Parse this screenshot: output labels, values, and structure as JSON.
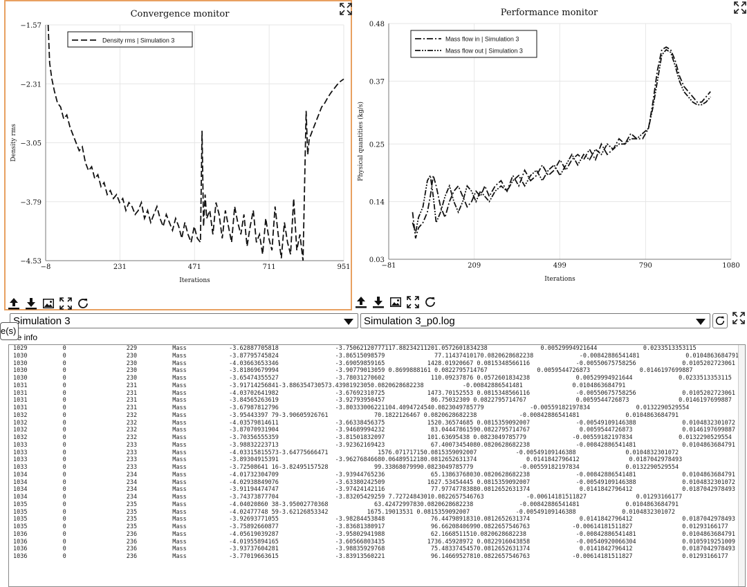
{
  "selectors": {
    "simulation_value": "Simulation 3",
    "logfile_value": "Simulation 3_p0.log"
  },
  "tooltip_fragment": "e(s)",
  "file_info_label": "File info",
  "toolbar_icons": [
    "upload-icon",
    "download-icon",
    "image-icon",
    "fullscreen-icon",
    "refresh-icon"
  ],
  "chart_data": [
    {
      "type": "line",
      "title": "Convergence monitor",
      "xlabel": "Iterations",
      "ylabel": "Density rms",
      "xlim": [
        -8,
        951
      ],
      "ylim": [
        -4.53,
        -1.57
      ],
      "xticks": [
        -8,
        231,
        471,
        711,
        951
      ],
      "yticks": [
        -1.57,
        -2.31,
        -3.05,
        -3.79,
        -4.53
      ],
      "xtick_labels": [
        "−8",
        "231",
        "471",
        "711",
        "951"
      ],
      "ytick_labels": [
        "−1.57",
        "−2.31",
        "−3.05",
        "−3.79",
        "−4.53"
      ],
      "grid": true,
      "legend_position": "top-left",
      "series": [
        {
          "name": "Density rms | Simulation 3",
          "style": "dashed",
          "x": [
            0,
            5,
            12,
            20,
            30,
            40,
            50,
            60,
            70,
            80,
            90,
            100,
            110,
            120,
            130,
            140,
            150,
            160,
            170,
            180,
            190,
            200,
            210,
            220,
            230,
            240,
            250,
            260,
            270,
            280,
            290,
            300,
            310,
            320,
            330,
            340,
            350,
            360,
            370,
            380,
            390,
            400,
            410,
            420,
            430,
            440,
            450,
            460,
            470,
            480,
            490,
            495,
            500,
            505,
            510,
            520,
            530,
            540,
            550,
            560,
            570,
            580,
            590,
            600,
            610,
            620,
            630,
            640,
            650,
            660,
            670,
            680,
            690,
            700,
            710,
            720,
            730,
            740,
            750,
            760,
            770,
            780,
            790,
            800,
            810,
            820,
            830,
            835,
            840,
            845,
            850,
            860,
            870,
            880,
            890,
            900,
            910,
            920,
            930,
            940,
            951
          ],
          "y": [
            -1.57,
            -2.05,
            -2.25,
            -2.4,
            -2.55,
            -2.6,
            -2.75,
            -2.7,
            -2.85,
            -2.95,
            -3.05,
            -3.15,
            -3.1,
            -3.3,
            -3.4,
            -3.35,
            -3.5,
            -3.45,
            -3.6,
            -3.55,
            -3.7,
            -3.65,
            -3.75,
            -3.7,
            -3.8,
            -3.75,
            -3.9,
            -3.8,
            -3.85,
            -3.95,
            -3.9,
            -3.8,
            -4.0,
            -3.9,
            -4.05,
            -3.95,
            -3.85,
            -4.0,
            -4.1,
            -3.95,
            -4.05,
            -4.15,
            -4.0,
            -4.1,
            -4.25,
            -4.05,
            -4.2,
            -4.3,
            -4.1,
            -4.25,
            -4.3,
            -2.9,
            -4.1,
            -3.7,
            -4.0,
            -3.9,
            -4.2,
            -3.8,
            -3.95,
            -4.25,
            -3.9,
            -4.1,
            -4.3,
            -3.85,
            -4.05,
            -4.2,
            -3.95,
            -4.35,
            -4.1,
            -3.9,
            -4.3,
            -4.2,
            -4.45,
            -4.0,
            -4.25,
            -4.4,
            -3.85,
            -4.2,
            -4.5,
            -4.05,
            -4.3,
            -4.45,
            -3.75,
            -4.4,
            -4.2,
            -4.53,
            -2.65,
            -3.2,
            -3.0,
            -2.95,
            -2.9,
            -2.8,
            -2.7,
            -2.6,
            -2.55,
            -2.48,
            -2.42,
            -2.37,
            -2.32,
            -2.28,
            -2.25
          ]
        }
      ]
    },
    {
      "type": "line",
      "title": "Performance monitor",
      "xlabel": "Iterations",
      "ylabel": "Physical quantities (kg/s)",
      "xlim": [
        -81,
        1080
      ],
      "ylim": [
        0.03,
        0.48
      ],
      "xticks": [
        -81,
        209,
        499,
        790,
        1080
      ],
      "yticks": [
        0.03,
        0.14,
        0.25,
        0.37,
        0.48
      ],
      "xtick_labels": [
        "−81",
        "209",
        "499",
        "790",
        "1080"
      ],
      "ytick_labels": [
        "0.03",
        "0.14",
        "0.25",
        "0.37",
        "0.48"
      ],
      "grid": true,
      "legend_position": "top-left",
      "series": [
        {
          "name": "Mass flow in | Simulation 3",
          "style": "dashdot",
          "x": [
            0,
            10,
            20,
            35,
            50,
            60,
            70,
            80,
            95,
            110,
            125,
            140,
            155,
            170,
            185,
            200,
            215,
            230,
            245,
            260,
            280,
            300,
            320,
            340,
            360,
            380,
            400,
            420,
            440,
            460,
            480,
            500,
            520,
            540,
            560,
            580,
            600,
            620,
            640,
            660,
            680,
            700,
            720,
            740,
            760,
            780,
            800,
            815,
            830,
            845,
            860,
            875,
            890,
            905,
            920,
            935,
            950,
            965,
            980,
            995,
            1010
          ],
          "y": [
            0.12,
            0.07,
            0.09,
            0.1,
            0.12,
            0.15,
            0.19,
            0.17,
            0.13,
            0.11,
            0.14,
            0.16,
            0.17,
            0.15,
            0.13,
            0.14,
            0.16,
            0.15,
            0.17,
            0.15,
            0.17,
            0.18,
            0.16,
            0.19,
            0.17,
            0.2,
            0.18,
            0.19,
            0.21,
            0.19,
            0.2,
            0.22,
            0.2,
            0.22,
            0.23,
            0.22,
            0.24,
            0.22,
            0.25,
            0.23,
            0.24,
            0.26,
            0.25,
            0.27,
            0.26,
            0.26,
            0.28,
            0.33,
            0.39,
            0.43,
            0.435,
            0.43,
            0.41,
            0.38,
            0.36,
            0.35,
            0.34,
            0.33,
            0.33,
            0.34,
            0.35
          ]
        },
        {
          "name": "Mass flow out | Simulation 3",
          "style": "dashdotdot",
          "x": [
            0,
            10,
            20,
            35,
            50,
            60,
            70,
            80,
            95,
            110,
            125,
            140,
            155,
            170,
            185,
            200,
            215,
            230,
            245,
            260,
            280,
            300,
            320,
            340,
            360,
            380,
            400,
            420,
            440,
            460,
            480,
            500,
            520,
            540,
            560,
            580,
            600,
            620,
            640,
            660,
            680,
            700,
            720,
            740,
            760,
            780,
            800,
            815,
            830,
            845,
            860,
            875,
            890,
            905,
            920,
            935,
            950,
            965,
            980,
            995,
            1010
          ],
          "y": [
            0.1,
            0.08,
            0.11,
            0.13,
            0.18,
            0.19,
            0.15,
            0.1,
            0.12,
            0.15,
            0.17,
            0.14,
            0.12,
            0.14,
            0.17,
            0.16,
            0.14,
            0.16,
            0.15,
            0.14,
            0.16,
            0.17,
            0.16,
            0.18,
            0.19,
            0.17,
            0.19,
            0.2,
            0.18,
            0.2,
            0.21,
            0.19,
            0.21,
            0.23,
            0.21,
            0.23,
            0.22,
            0.24,
            0.23,
            0.25,
            0.24,
            0.25,
            0.25,
            0.26,
            0.26,
            0.27,
            0.28,
            0.32,
            0.37,
            0.42,
            0.43,
            0.425,
            0.4,
            0.37,
            0.35,
            0.34,
            0.33,
            0.325,
            0.325,
            0.33,
            0.34
          ]
        }
      ]
    }
  ],
  "log_lines": [
    "1029          0                 229          Mass            -3.62887705818                -3.75062120777117.88234211201.0572601834238               0.00529994921644             0.0233513353115",
    "1030          0                 230          Mass            -3.87795745824                -3.86515098579              77.11437410170.0820628682238             -0.00842886541481             0.0104863684791",
    "1030          0                 230          Mass            -4.03663653346                -3.69059859165            1428.01920667 0.0815348566116             -0.00550675758256             0.0105202723061",
    "1030          0                 230          Mass            -3.81869679994                -3.90779013059 0.8699888161 0.0822795714767              0.0059544726873              0.0146197699887",
    "1030          0                 230          Mass            -3.65474355527                -3.78031270602             110.09237876 0.0572601834238             0.00529994921644             0.0233513353115",
    "1031          0                 231          Mass            -3.91714256841-3.886354730573.43981923050.0820628682238           -0.00842886541481              0.0104863684791",
    "1031          0                 231          Mass            -4.03702641982                -3.67692310725            1473.70152553 0.0815348566116             -0.00550675758256             0.0105202723061",
    "1031          0                 231          Mass            -3.84565263619                -3.92793950457             86.75032309 0.0822795714767              0.0059544726873              0.0146197699887",
    "1031          0                 231          Mass            -3.67987812796                -3.80333006221104.4094724540.0823049785779             -0.00559182197834             0.0132290529554",
    "1032          0                 232          Mass            -3.95443397 79-3.90605926761             70.1822126467 0.0820628682238            -0.00842886541481             0.0104863684791",
    "1032          0                 232          Mass            -4.03579814611                -3.66338456375            1520.36574685 0.0815359092007             -0.00549109146388             0.0104832301072",
    "1032          0                 232          Mass            -3.87070931904                -3.94689994232             83.04447861590.0822795714767              0.0059544726873              0.0146197699887",
    "1032          0                 232          Mass            -3.70356555359                -3.81501832097            101.63695438 0.0823049785779             -0.00559182197834             0.0132290529554",
    "1033          0                 233          Mass            -3.98832223713                -3.92362169423             67.40073454080.0820628682238             -0.00842886541481             0.0104863684791",
    "1033          0                 233          Mass            -4.03315815573-3.64775666471              1576.071717150.0815359092007           -0.00549109146388              0.0104832301072",
    "1033          0                 233          Mass            -3.89304915391                -3.96276846680.06489512180.0812652631374              0.0141842796412              0.0187042978493",
    "1033          0                 233          Mass            -3.72508641 16-3.82495157528             99.33868079990.0823049785779             -0.00559182197834             0.0132290529554",
    "1034          0                 234          Mass            -4.01732304709                -3.93944765236             65.13863768030.0820628682238             -0.00842886541481             0.0104863684791",
    "1034          0                 234          Mass            -4.02938849076                -3.63380242509            1627.53454445 0.0815359092007             -0.00549109146388             0.0104832301072",
    "1034          0                 234          Mass            -3.91194474747                -3.97424142116             77.97747783880.0812652631374              0.0141842796412              0.0187042978493",
    "1034          0                 234          Mass            -3.74373877704                -3.83205429259 7.72724843010.0822657546763            -0.00614181511827              0.01293166177",
    "1035          0                 235          Mass            -4.04020860 38-3.95002770368             63.42472997830.0820628682238             -0.00842886541481             0.0104863684791",
    "1035          0                 235          Mass            -4.02477748 59-3.62126853342           1675.19013531 0.0815359092007             -0.00549109146388             0.0104832301072",
    "1035          0                 235          Mass            -3.92693771055                -3.98284453848             76.44798918310.0812652631374              0.0141842796412              0.0187042978493",
    "1035          0                 235          Mass            -3.75892660877                -3.83681380917             96.66208406990.0822657546763            -0.00614181511827              0.01293166177",
    "1036          0                 236          Mass            -4.05619039287                -3.95802941988             62.1668511510.0820628682238              -0.00842886541481             0.0104863684791",
    "1036          0                 236          Mass            -4.01955894165                -3.60566803435            1736.45928972 0.0822916043858             -0.00540920066304             0.0105919251009",
    "1036          0                 236          Mass            -3.93737604281                -3.98835929768             75.48337454570.0812652631374              0.0141842796412              0.0187042978493",
    "1036          0                 236          Mass            -3.77019663615                -3.83913560221             96.14669527810.0822657546763            -0.00614181511827              0.01293166177"
  ]
}
